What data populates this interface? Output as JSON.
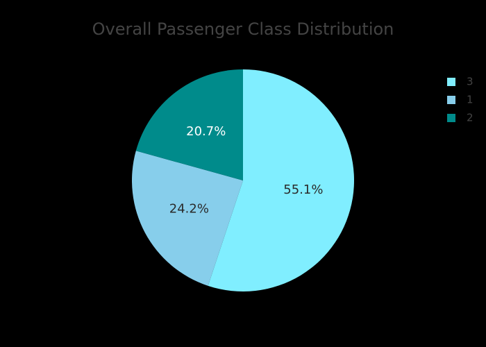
{
  "chart_data": {
    "type": "pie",
    "title": "Overall Passenger Class Distribution",
    "slices": [
      {
        "label": "3",
        "value": 55.1,
        "text": "55.1%",
        "color": "#80eeff",
        "text_color": "#2a2a2a"
      },
      {
        "label": "1",
        "value": 24.2,
        "text": "24.2%",
        "color": "#87ceeb",
        "text_color": "#2a2a2a"
      },
      {
        "label": "2",
        "value": 20.7,
        "text": "20.7%",
        "color": "#008b8b",
        "text_color": "#ffffff"
      }
    ],
    "direction": "clockwise",
    "start": "top",
    "legend": {
      "position": "top-right",
      "entries": [
        "3",
        "1",
        "2"
      ]
    },
    "background": "#000000"
  }
}
